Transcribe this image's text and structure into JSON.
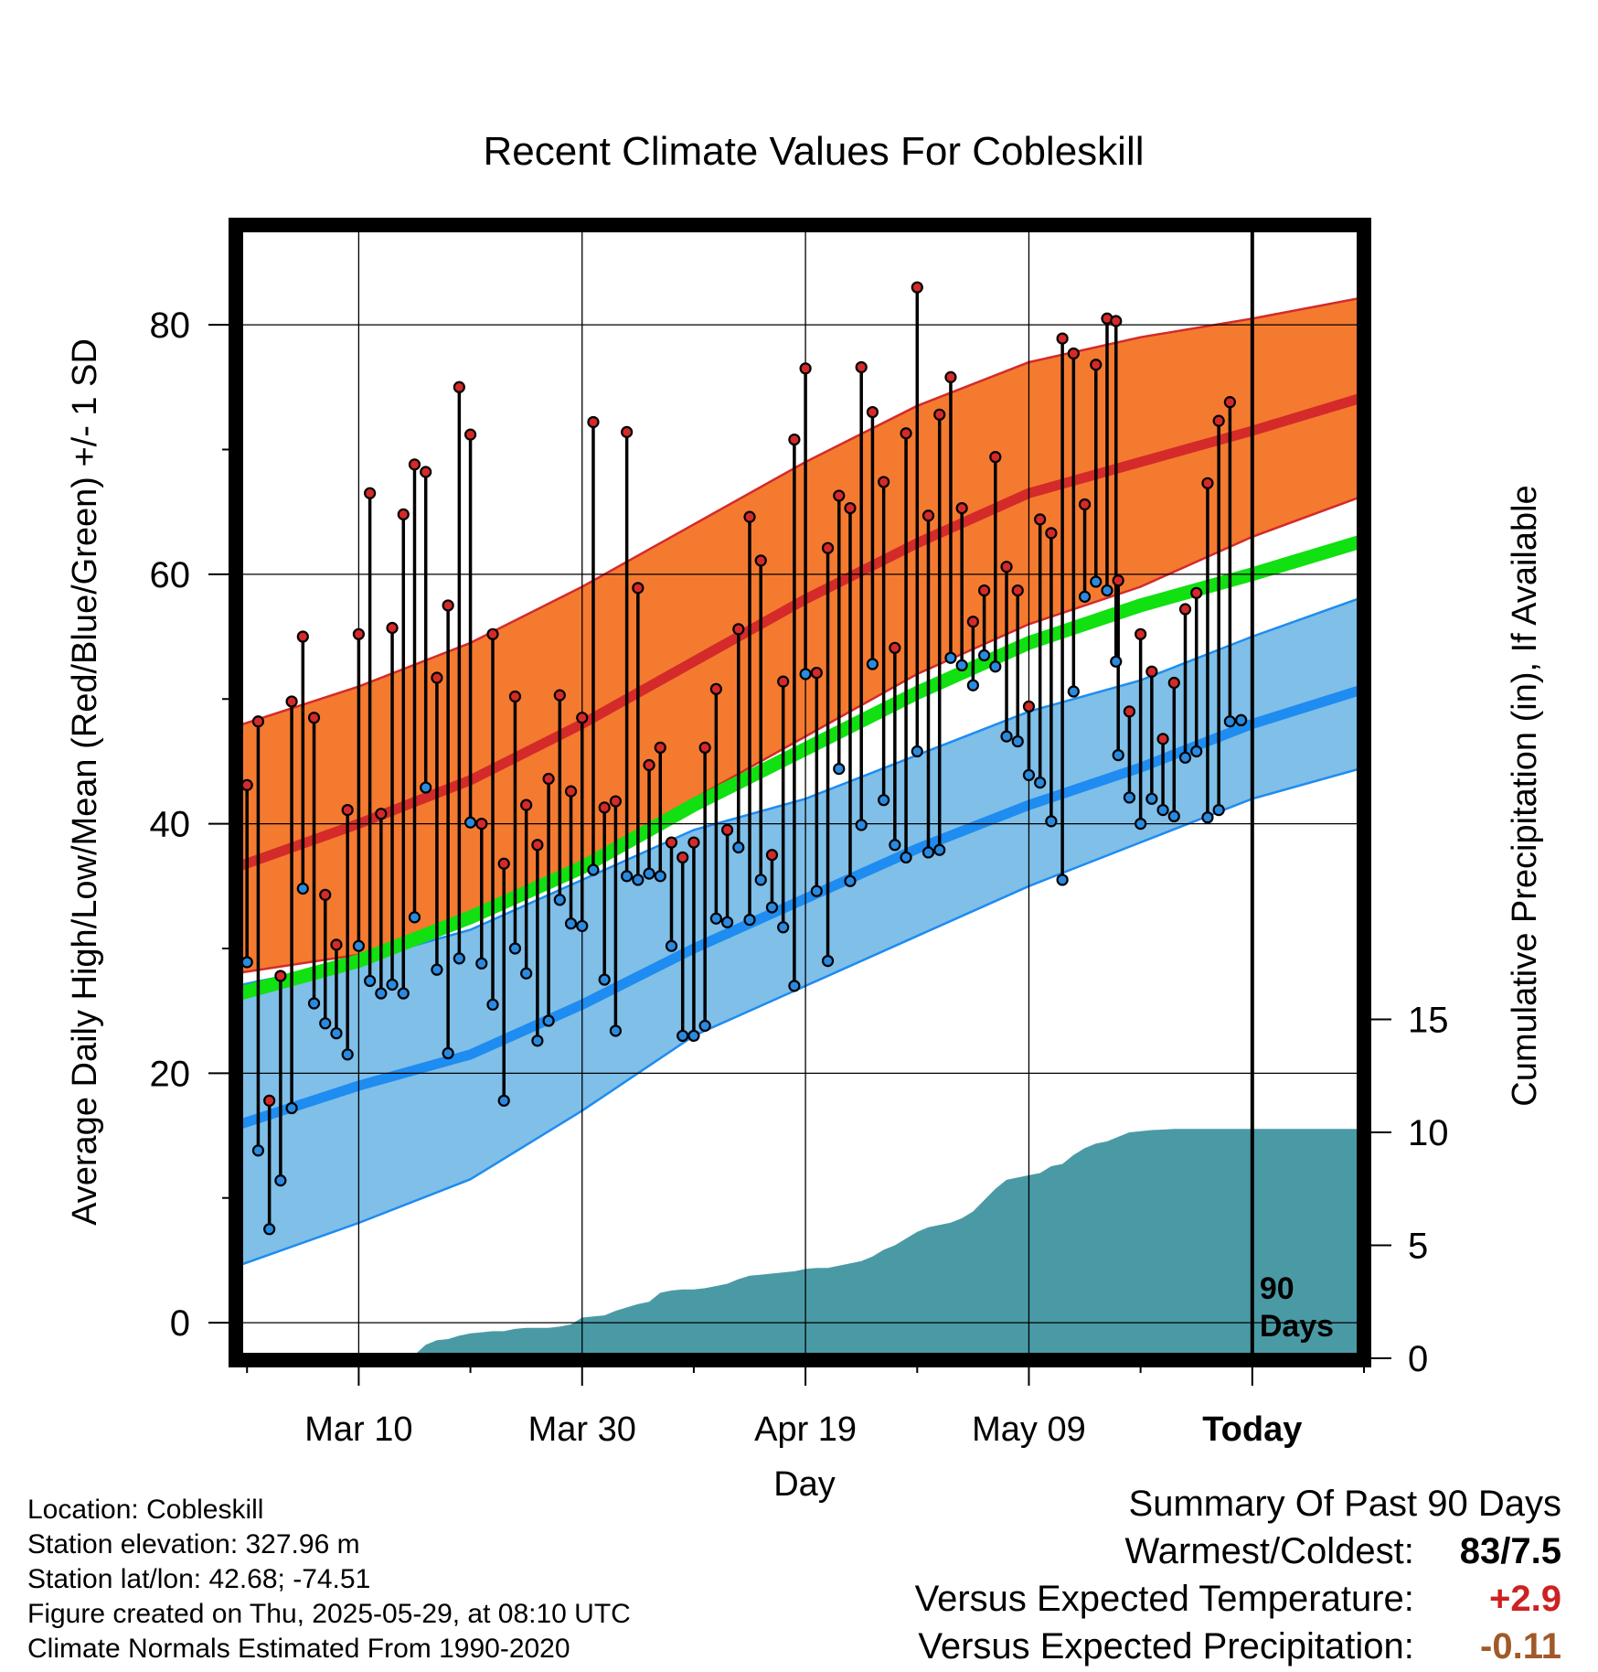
{
  "chart_data": {
    "type": "line",
    "title": "Recent Climate Values For Cobleskill",
    "xlabel": "Day",
    "ylabel": "Average Daily High/Low/Mean (Red/Blue/Green) +/- 1 SD",
    "y2label": "Cumulative Precipitation (in), If Available",
    "ylim": [
      -3,
      88
    ],
    "y_ticks": [
      0,
      20,
      40,
      60,
      80
    ],
    "y2_ticks": [
      0,
      5,
      10,
      15
    ],
    "x_ticks": [
      {
        "day": 11,
        "label": "Mar 10"
      },
      {
        "day": 31,
        "label": "Mar 30"
      },
      {
        "day": 51,
        "label": "Apr 19"
      },
      {
        "day": 71,
        "label": "May 09"
      },
      {
        "day": 91,
        "label": "Today"
      }
    ],
    "today_marker": {
      "day": 91,
      "label_line1": "90",
      "label_line2": "Days"
    },
    "grid": true,
    "colors": {
      "high_band": "#f47a30",
      "high_line": "#d42a2a",
      "low_band": "#7fbfe8",
      "low_line": "#1e8cf0",
      "mean_line": "#11e011",
      "precip": "#4a9aa6",
      "high_dot": "#d42a2a",
      "low_dot": "#2a8ae0",
      "positive_anomaly": "#cc2222",
      "negative_anomaly": "#a05a2a"
    },
    "normals": {
      "high_mean": {
        "x": [
          0,
          11,
          21,
          31,
          41,
          51,
          61,
          71,
          81,
          91,
          101
        ],
        "y": [
          36.5,
          40,
          43.5,
          48,
          53,
          58,
          62.5,
          66.5,
          69,
          71.5,
          74.2
        ]
      },
      "high_upper": {
        "x": [
          0,
          11,
          21,
          31,
          41,
          51,
          61,
          71,
          81,
          91,
          101
        ],
        "y": [
          47.8,
          51,
          54.5,
          59,
          64,
          69,
          73.5,
          77,
          79,
          80.5,
          82.2
        ]
      },
      "high_lower": {
        "x": [
          0,
          11,
          21,
          31,
          41,
          51,
          61,
          71,
          81,
          91,
          101
        ],
        "y": [
          28,
          29.5,
          32.5,
          37,
          42,
          47,
          52,
          56,
          59,
          63,
          66.3
        ]
      },
      "low_mean": {
        "x": [
          0,
          11,
          21,
          31,
          41,
          51,
          61,
          71,
          81,
          91,
          101
        ],
        "y": [
          15.8,
          19,
          21.5,
          25.5,
          30,
          34,
          38,
          41.5,
          44.5,
          48,
          50.8
        ]
      },
      "low_upper": {
        "x": [
          0,
          11,
          21,
          31,
          41,
          51,
          61,
          71,
          81,
          91,
          101
        ],
        "y": [
          27,
          29,
          31.5,
          35.5,
          39.5,
          42,
          45.5,
          49,
          51.5,
          55,
          58.2
        ]
      },
      "low_lower": {
        "x": [
          0,
          11,
          21,
          31,
          41,
          51,
          61,
          71,
          81,
          91,
          101
        ],
        "y": [
          4.5,
          8,
          11.5,
          17,
          23,
          27,
          31,
          35,
          38.5,
          42,
          44.5
        ]
      },
      "mean": {
        "x": [
          0,
          11,
          21,
          31,
          41,
          51,
          61,
          71,
          81,
          91,
          101
        ],
        "y": [
          26.3,
          29,
          32.5,
          36.5,
          41.5,
          46,
          50.5,
          54.5,
          57.5,
          60,
          62.7
        ]
      }
    },
    "daily": {
      "day": [
        1,
        2,
        3,
        4,
        5,
        6,
        7,
        8,
        9,
        10,
        11,
        12,
        13,
        14,
        15,
        16,
        17,
        18,
        19,
        20,
        21,
        22,
        23,
        24,
        25,
        26,
        27,
        28,
        29,
        30,
        31,
        32,
        33,
        34,
        35,
        36,
        37,
        38,
        39,
        40,
        41,
        42,
        43,
        44,
        45,
        46,
        47,
        48,
        49,
        50,
        51,
        52,
        53,
        54,
        55,
        56,
        57,
        58,
        59,
        60,
        61,
        62,
        63,
        64,
        65,
        66,
        67,
        68,
        69,
        70,
        71,
        72,
        73,
        74,
        75,
        76,
        77,
        78,
        78.8,
        79,
        80,
        81,
        82,
        83,
        84,
        85,
        86,
        87,
        88,
        89,
        90
      ],
      "high": [
        43.1,
        48.2,
        17.8,
        27.8,
        49.8,
        55.0,
        48.5,
        34.3,
        30.3,
        41.1,
        55.2,
        66.5,
        40.8,
        55.7,
        64.8,
        68.8,
        68.2,
        51.7,
        57.5,
        75.0,
        71.2,
        40.0,
        55.2,
        36.8,
        50.2,
        41.5,
        38.3,
        43.6,
        50.3,
        42.6,
        48.5,
        72.2,
        41.3,
        41.8,
        71.4,
        58.9,
        44.7,
        46.1,
        38.5,
        37.3,
        38.5,
        46.1,
        50.8,
        39.5,
        55.6,
        64.6,
        61.1,
        37.5,
        51.4,
        70.8,
        76.5,
        52.1,
        62.1,
        66.3,
        65.3,
        76.6,
        73.0,
        67.4,
        54.1,
        71.3,
        83.0,
        64.7,
        72.8,
        75.8,
        65.3,
        56.2,
        58.7,
        69.4,
        60.6,
        58.7,
        49.4,
        64.4,
        63.3,
        78.9,
        77.7,
        65.6,
        76.8,
        80.5,
        80.3,
        59.5,
        49.0,
        55.2,
        52.2,
        46.8,
        51.3,
        57.2,
        58.5,
        67.3,
        72.3,
        73.8,
        48.3
      ],
      "low": [
        28.9,
        13.8,
        7.5,
        11.4,
        17.2,
        34.8,
        25.6,
        24.0,
        23.2,
        21.5,
        30.2,
        27.4,
        26.4,
        27.1,
        26.4,
        32.5,
        42.9,
        28.3,
        21.6,
        29.2,
        40.1,
        28.8,
        25.5,
        17.8,
        30.0,
        28.0,
        22.6,
        24.2,
        33.9,
        32.0,
        31.8,
        36.3,
        27.5,
        23.4,
        35.8,
        35.5,
        36.0,
        35.8,
        30.2,
        23.0,
        23.0,
        23.8,
        32.4,
        32.1,
        38.1,
        32.3,
        35.5,
        33.3,
        31.7,
        27.0,
        52.0,
        34.6,
        29.0,
        44.4,
        35.4,
        39.9,
        52.8,
        41.9,
        38.3,
        37.3,
        45.8,
        37.7,
        37.9,
        53.3,
        52.7,
        51.1,
        53.5,
        52.6,
        47.0,
        46.6,
        43.9,
        43.3,
        40.2,
        35.5,
        50.6,
        58.2,
        59.4,
        58.7,
        53.0,
        45.5,
        42.1,
        40.0,
        42.0,
        41.1,
        40.6,
        45.3,
        45.8,
        40.5,
        41.1,
        48.2,
        48.3
      ]
    },
    "precip_cumulative": {
      "day": [
        0,
        6,
        7,
        8,
        9,
        10,
        11,
        12,
        13,
        14,
        15,
        16,
        17,
        18,
        19,
        20,
        21,
        22,
        23,
        24,
        25,
        26,
        27,
        28,
        29,
        30,
        31,
        32,
        33,
        34,
        35,
        36,
        37,
        38,
        39,
        40,
        41,
        42,
        43,
        44,
        45,
        46,
        47,
        48,
        49,
        50,
        51,
        52,
        53,
        54,
        55,
        56,
        57,
        58,
        59,
        60,
        61,
        62,
        63,
        64,
        65,
        66,
        67,
        68,
        69,
        70,
        71,
        72,
        73,
        74,
        75,
        76,
        77,
        78,
        79,
        80,
        81,
        82,
        83,
        84,
        85,
        86,
        87,
        88,
        89,
        90,
        101
      ],
      "value": [
        0,
        0,
        0.05,
        0.1,
        0.12,
        0.15,
        0.15,
        0.15,
        0.15,
        0.15,
        0.15,
        0.15,
        0.6,
        0.8,
        0.85,
        1.0,
        1.1,
        1.15,
        1.2,
        1.2,
        1.3,
        1.35,
        1.35,
        1.35,
        1.4,
        1.5,
        1.8,
        1.85,
        1.9,
        2.1,
        2.25,
        2.4,
        2.5,
        2.9,
        3.0,
        3.05,
        3.05,
        3.1,
        3.2,
        3.3,
        3.5,
        3.65,
        3.7,
        3.75,
        3.8,
        3.85,
        3.95,
        4.0,
        4.0,
        4.1,
        4.2,
        4.3,
        4.5,
        4.8,
        5.0,
        5.3,
        5.6,
        5.8,
        5.9,
        6.0,
        6.2,
        6.5,
        7.0,
        7.5,
        7.9,
        8.0,
        8.1,
        8.2,
        8.5,
        8.6,
        9.0,
        9.3,
        9.5,
        9.6,
        9.8,
        10.0,
        10.05,
        10.1,
        10.12,
        10.15,
        10.15,
        10.15,
        10.15,
        10.15,
        10.15,
        10.15,
        10.15
      ]
    }
  },
  "footer": {
    "location": "Location: Cobleskill",
    "elevation": "Station elevation: 327.96 m",
    "latlon": "Station lat/lon: 42.68; -74.51",
    "created": "Figure created on Thu, 2025-05-29, at 08:10 UTC",
    "normals": "Climate Normals Estimated From 1990-2020"
  },
  "summary": {
    "title": "Summary Of Past 90 Days",
    "warmest_label": "Warmest/Coldest:",
    "warmest_value": "83/7.5",
    "temp_label": "Versus Expected Temperature:",
    "temp_value": "+2.9",
    "precip_label": "Versus Expected Precipitation:",
    "precip_value": "-0.11"
  }
}
